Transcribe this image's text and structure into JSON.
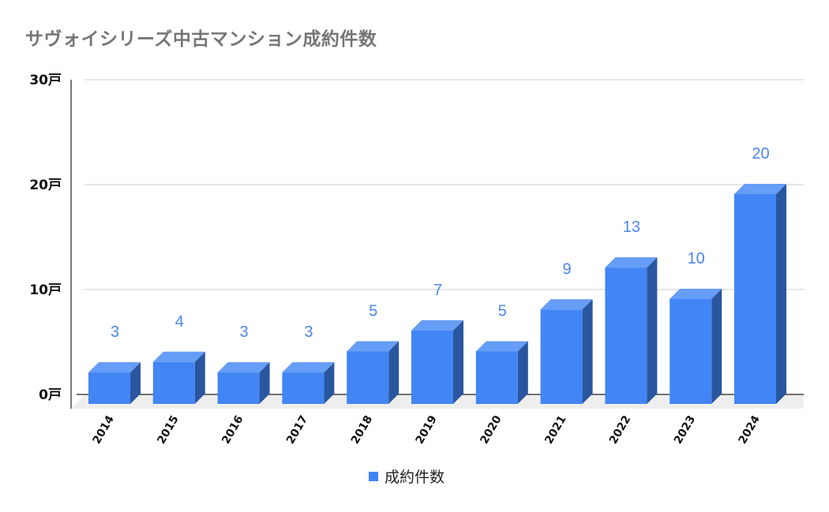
{
  "title": "サヴォイシリーズ中古マンション成約件数",
  "colors": {
    "bar_front": "#4285f4",
    "bar_top": "#669df6",
    "bar_side": "#2a56a0",
    "value_label": "#4a86e8",
    "gridline": "#cccccc",
    "floor": "#eeeeee",
    "axis": "#222222",
    "title": "#757575"
  },
  "y_axis": {
    "ticks": [
      "0戸",
      "10戸",
      "20戸",
      "30戸"
    ]
  },
  "legend": {
    "label": "成約件数"
  },
  "chart_data": {
    "type": "bar",
    "title": "サヴォイシリーズ中古マンション成約件数",
    "categories": [
      "2014",
      "2015",
      "2016",
      "2017",
      "2018",
      "2019",
      "2020",
      "2021",
      "2022",
      "2023",
      "2024"
    ],
    "series": [
      {
        "name": "成約件数",
        "values": [
          3,
          4,
          3,
          3,
          5,
          7,
          5,
          9,
          13,
          10,
          20
        ]
      }
    ],
    "values": [
      3,
      4,
      3,
      3,
      5,
      7,
      5,
      9,
      13,
      10,
      20
    ],
    "xlabel": "",
    "ylabel": "",
    "ylim": [
      0,
      30
    ],
    "y_tick_labels": [
      "0戸",
      "10戸",
      "20戸",
      "30戸"
    ],
    "grid": true,
    "legend_position": "bottom",
    "style": "3d-column",
    "data_labels": true
  }
}
